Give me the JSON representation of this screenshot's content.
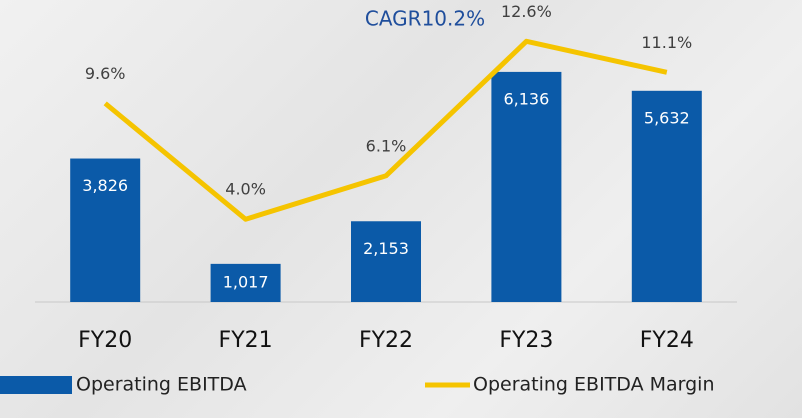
{
  "chart_data": {
    "type": "bar_line",
    "title": "CAGR10.2%",
    "categories": [
      "FY20",
      "FY21",
      "FY22",
      "FY23",
      "FY24"
    ],
    "ylim": [
      0,
      8000
    ],
    "y2lim": [
      0,
      14.5
    ],
    "series": [
      {
        "name": "Operating EBITDA",
        "type": "bar",
        "color": "#0b5aa8",
        "values": [
          3826,
          1017,
          2153,
          6136,
          5632
        ],
        "value_labels": [
          "3,826",
          "1,017",
          "2,153",
          "6,136",
          "5,632"
        ]
      },
      {
        "name": "Operating EBITDA Margin",
        "type": "line",
        "axis": "y2",
        "color": "#f5c400",
        "values": [
          9.6,
          4.0,
          6.1,
          12.6,
          11.1
        ],
        "value_labels": [
          "9.6%",
          "4.0%",
          "6.1%",
          "12.6%",
          "11.1%"
        ]
      }
    ],
    "legend": "bottom"
  }
}
